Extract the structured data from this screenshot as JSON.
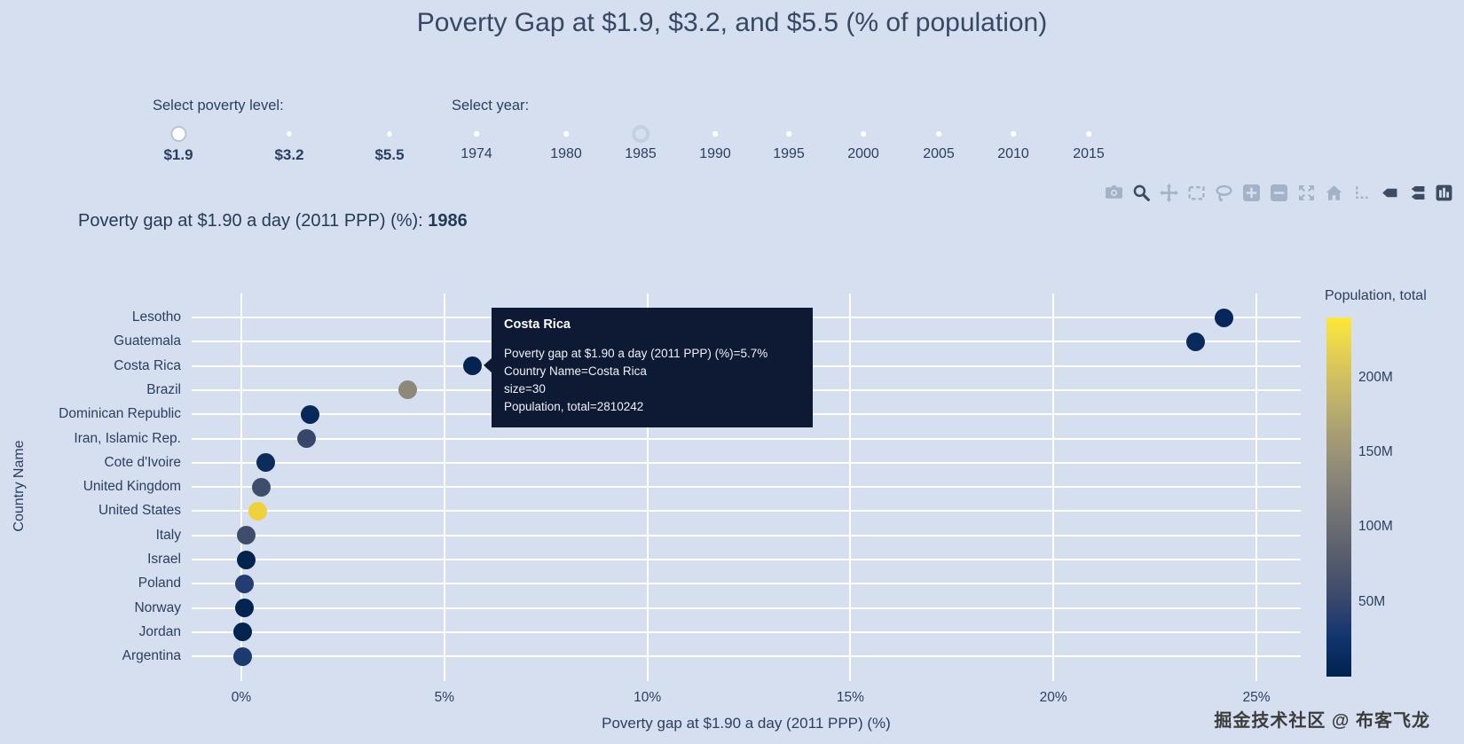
{
  "page": {
    "title": "Poverty Gap at $1.9, $3.2, and $5.5 (% of population)",
    "background": "#d5dfef",
    "watermark": "掘金技术社区 @ 布客飞龙"
  },
  "controls": {
    "poverty_level": {
      "label": "Select poverty level:",
      "options": [
        "$1.9",
        "$3.2",
        "$5.5"
      ],
      "selected": "$1.9"
    },
    "year": {
      "label": "Select year:",
      "options": [
        "1974",
        "1980",
        "1985",
        "1990",
        "1995",
        "2000",
        "2005",
        "2010",
        "2015"
      ],
      "selected": "1985"
    }
  },
  "readout": {
    "label": "Poverty gap at $1.90 a day (2011 PPP) (%): ",
    "value": "1986"
  },
  "modebar": {
    "color": "#a2b2c7",
    "active_color": "#3e4c63",
    "icons": [
      {
        "name": "camera",
        "active": false
      },
      {
        "name": "zoom",
        "active": true
      },
      {
        "name": "pan",
        "active": false
      },
      {
        "name": "box-select",
        "active": false
      },
      {
        "name": "lasso-select",
        "active": false
      },
      {
        "name": "zoom-in",
        "active": false
      },
      {
        "name": "zoom-out",
        "active": false
      },
      {
        "name": "autoscale",
        "active": false
      },
      {
        "name": "reset-axes",
        "active": false
      },
      {
        "name": "toggle-spikelines",
        "active": false
      },
      {
        "name": "hover-closest",
        "active": true
      },
      {
        "name": "hover-compare",
        "active": true
      },
      {
        "name": "plotly-logo",
        "active": true
      }
    ]
  },
  "tooltip": {
    "title": "Costa Rica",
    "bg": "#0e1a33",
    "lines": [
      "Poverty gap at $1.90 a day (2011 PPP) (%)=5.7%",
      "Country Name=Costa Rica",
      "size=30",
      "Population, total=2810242"
    ]
  },
  "chart_data": {
    "type": "scatter",
    "title": "Poverty Gap at $1.9, $3.2, and $5.5 (% of population)",
    "xlabel": "Poverty gap at $1.90 a day (2011 PPP) (%)",
    "ylabel": "Country Name",
    "xlim": [
      -1.2,
      26.1
    ],
    "grid": true,
    "gridcolor": "#ffffff",
    "x_ticks": [
      {
        "v": 0,
        "label": "0%"
      },
      {
        "v": 5,
        "label": "5%"
      },
      {
        "v": 10,
        "label": "10%"
      },
      {
        "v": 15,
        "label": "15%"
      },
      {
        "v": 20,
        "label": "20%"
      },
      {
        "v": 25,
        "label": "25%"
      }
    ],
    "marker_size": 30,
    "points": [
      {
        "country": "Lesotho",
        "value": 24.2,
        "color": "#07265a"
      },
      {
        "country": "Guatemala",
        "value": 23.5,
        "color": "#0a2a5c"
      },
      {
        "country": "Costa Rica",
        "value": 5.7,
        "color": "#03244f"
      },
      {
        "country": "Brazil",
        "value": 4.1,
        "color": "#8d8878"
      },
      {
        "country": "Dominican Republic",
        "value": 1.7,
        "color": "#072858"
      },
      {
        "country": "Iran, Islamic Rep.",
        "value": 1.6,
        "color": "#374669"
      },
      {
        "country": "Cote d'Ivoire",
        "value": 0.6,
        "color": "#0b2d5b"
      },
      {
        "country": "United Kingdom",
        "value": 0.5,
        "color": "#3f4c6c"
      },
      {
        "country": "United States",
        "value": 0.4,
        "color": "#f0d13a"
      },
      {
        "country": "Italy",
        "value": 0.12,
        "color": "#3f4c6c"
      },
      {
        "country": "Israel",
        "value": 0.12,
        "color": "#03244f"
      },
      {
        "country": "Poland",
        "value": 0.07,
        "color": "#233d70"
      },
      {
        "country": "Norway",
        "value": 0.07,
        "color": "#03244f"
      },
      {
        "country": "Jordan",
        "value": 0.03,
        "color": "#03244f"
      },
      {
        "country": "Argentina",
        "value": 0.04,
        "color": "#1c3a6e"
      }
    ],
    "colorbar": {
      "title": "Population, total",
      "max": 240000000,
      "ticks": [
        {
          "value": 200000000,
          "label": "200M"
        },
        {
          "value": 150000000,
          "label": "150M"
        },
        {
          "value": 100000000,
          "label": "100M"
        },
        {
          "value": 50000000,
          "label": "50M"
        }
      ],
      "colors": [
        "#fde838",
        "#e1cc55",
        "#c3b369",
        "#a59c74",
        "#8a8678",
        "#707173",
        "#575d6d",
        "#3b496c",
        "#123570",
        "#00224e"
      ]
    }
  }
}
